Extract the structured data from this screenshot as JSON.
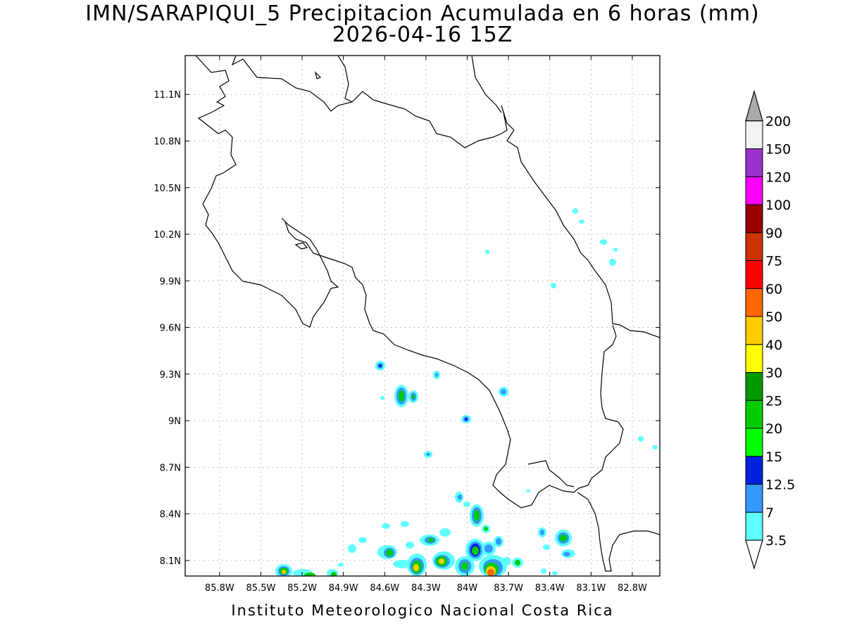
{
  "title": {
    "line1": "IMN/SARAPIQUI_5 Precipitacion Acumulada en 6 horas (mm)",
    "line2": "2026-04-16 15Z"
  },
  "footer": "Instituto Meteorologico Nacional Costa Rica",
  "map": {
    "lon_range": [
      -86.05,
      -82.6
    ],
    "lat_range": [
      8.0,
      11.35
    ],
    "lat_ticks": [
      "11.1N",
      "10.8N",
      "10.5N",
      "10.2N",
      "9.9N",
      "9.6N",
      "9.3N",
      "9N",
      "8.7N",
      "8.4N",
      "8.1N"
    ],
    "lon_ticks": [
      "85.8W",
      "85.5W",
      "85.2W",
      "84.9W",
      "84.6W",
      "84.3W",
      "84W",
      "83.7W",
      "83.4W",
      "83.1W",
      "82.8W"
    ],
    "grid": true
  },
  "colorbar": {
    "levels": [
      "3.5",
      "7",
      "12.5",
      "15",
      "20",
      "25",
      "30",
      "40",
      "50",
      "60",
      "75",
      "90",
      "100",
      "120",
      "150",
      "200"
    ],
    "colors": [
      "#5effff",
      "#3399ff",
      "#0022dd",
      "#00ff00",
      "#00cc00",
      "#009900",
      "#ffff00",
      "#ffcc00",
      "#ff6600",
      "#ff0000",
      "#cc3300",
      "#990000",
      "#ff00ff",
      "#9933cc",
      "#f2f2f2",
      "#aaaaaa"
    ]
  }
}
